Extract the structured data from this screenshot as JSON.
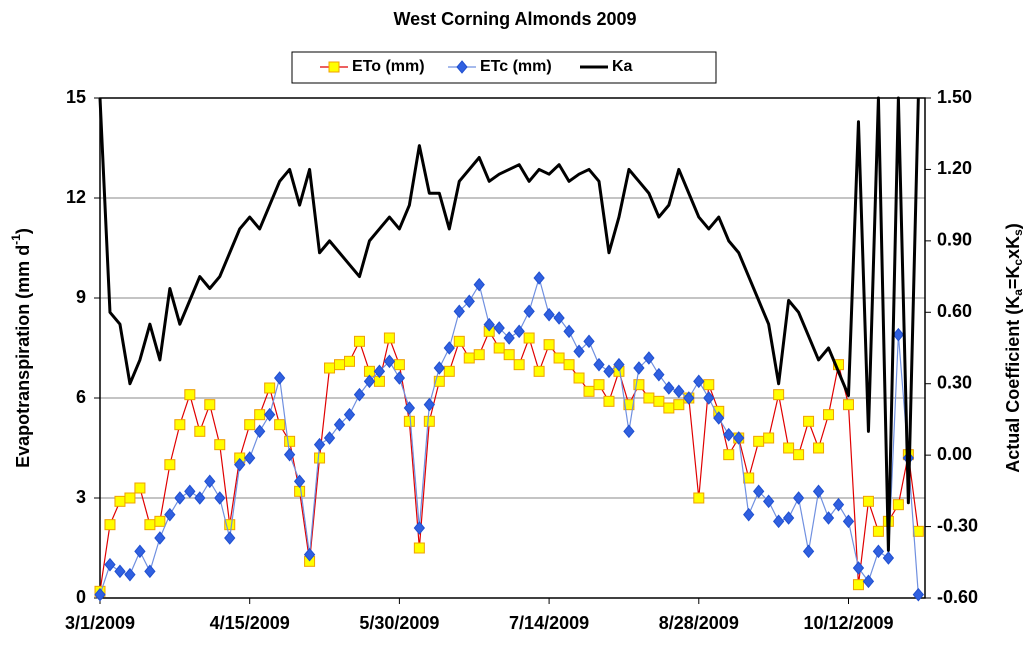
{
  "chart_data": {
    "type": "line",
    "title": "West Corning Almonds 2009",
    "ylabel": [
      "Evapotranspiration  (mm d",
      "-1",
      ")"
    ],
    "y2label": [
      "Actual  Coefficient (K",
      "a",
      "=K",
      "c",
      "xK",
      "s",
      ")"
    ],
    "x": [
      "3/1/2009",
      "3/4/2009",
      "3/7/2009",
      "3/10/2009",
      "3/13/2009",
      "3/16/2009",
      "3/19/2009",
      "3/22/2009",
      "3/25/2009",
      "3/28/2009",
      "3/31/2009",
      "4/3/2009",
      "4/6/2009",
      "4/9/2009",
      "4/12/2009",
      "4/15/2009",
      "4/18/2009",
      "4/21/2009",
      "4/24/2009",
      "4/27/2009",
      "4/30/2009",
      "5/3/2009",
      "5/6/2009",
      "5/9/2009",
      "5/12/2009",
      "5/15/2009",
      "5/18/2009",
      "5/21/2009",
      "5/24/2009",
      "5/27/2009",
      "5/30/2009",
      "6/2/2009",
      "6/5/2009",
      "6/8/2009",
      "6/11/2009",
      "6/14/2009",
      "6/17/2009",
      "6/20/2009",
      "6/23/2009",
      "6/26/2009",
      "6/29/2009",
      "7/2/2009",
      "7/5/2009",
      "7/8/2009",
      "7/11/2009",
      "7/14/2009",
      "7/17/2009",
      "7/20/2009",
      "7/23/2009",
      "7/26/2009",
      "7/29/2009",
      "8/1/2009",
      "8/4/2009",
      "8/7/2009",
      "8/10/2009",
      "8/13/2009",
      "8/16/2009",
      "8/19/2009",
      "8/22/2009",
      "8/25/2009",
      "8/28/2009",
      "8/31/2009",
      "9/3/2009",
      "9/6/2009",
      "9/9/2009",
      "9/12/2009",
      "9/15/2009",
      "9/18/2009",
      "9/21/2009",
      "9/24/2009",
      "9/27/2009",
      "9/30/2009",
      "10/3/2009",
      "10/6/2009",
      "10/9/2009",
      "10/12/2009",
      "10/15/2009",
      "10/18/2009",
      "10/21/2009",
      "10/24/2009",
      "10/27/2009",
      "10/30/2009",
      "11/2/2009"
    ],
    "xlim": [
      "3/1/2009",
      "11/4/2009"
    ],
    "xticks": [
      "3/1/2009",
      "4/15/2009",
      "5/30/2009",
      "7/14/2009",
      "8/28/2009",
      "10/12/2009"
    ],
    "ylim": [
      0,
      15
    ],
    "yticks": [
      0,
      3,
      6,
      9,
      12,
      15
    ],
    "y2lim": [
      -0.6,
      1.5
    ],
    "y2ticks": [
      {
        "value": -0.6,
        "label": "-0.60"
      },
      {
        "value": -0.3,
        "label": "-0.30"
      },
      {
        "value": 0,
        "label": "0.00"
      },
      {
        "value": 0.3,
        "label": "0.30"
      },
      {
        "value": 0.6,
        "label": "0.60"
      },
      {
        "value": 0.9,
        "label": "0.90"
      },
      {
        "value": 1.2,
        "label": "1.20"
      },
      {
        "value": 1.5,
        "label": "1.50"
      }
    ],
    "grid": true,
    "legend": "top",
    "series": [
      {
        "name": "ETo (mm)",
        "color": "#e00000",
        "marker": "square",
        "marker_fill": "#ffff00",
        "marker_edge": "#f0a000",
        "values": [
          0.2,
          2.2,
          2.9,
          3.0,
          3.3,
          2.2,
          2.3,
          4.0,
          5.2,
          6.1,
          5.0,
          5.8,
          4.6,
          2.2,
          4.2,
          5.2,
          5.5,
          6.3,
          5.2,
          4.7,
          3.2,
          1.1,
          4.2,
          6.9,
          7.0,
          7.1,
          7.7,
          6.8,
          6.5,
          7.8,
          7.0,
          5.3,
          1.5,
          5.3,
          6.5,
          6.8,
          7.7,
          7.2,
          7.3,
          8.0,
          7.5,
          7.3,
          7.0,
          7.8,
          6.8,
          7.6,
          7.2,
          7.0,
          6.6,
          6.2,
          6.4,
          5.9,
          6.8,
          5.8,
          6.4,
          6.0,
          5.9,
          5.7,
          5.8,
          6.0,
          3.0,
          6.4,
          5.6,
          4.3,
          4.8,
          3.6,
          4.7,
          4.8,
          6.1,
          4.5,
          4.3,
          5.3,
          4.5,
          5.5,
          7.0,
          5.8,
          0.4,
          2.9,
          2.0,
          2.3,
          2.8,
          4.3,
          2.0
        ]
      },
      {
        "name": "ETc (mm)",
        "color": "#7090e0",
        "marker": "diamond",
        "marker_fill": "#3060e0",
        "marker_edge": "#2050d0",
        "values": [
          0.1,
          1.0,
          0.8,
          0.7,
          1.4,
          0.8,
          1.8,
          2.5,
          3.0,
          3.2,
          3.0,
          3.5,
          3.0,
          1.8,
          4.0,
          4.2,
          5.0,
          5.5,
          6.6,
          4.3,
          3.5,
          1.3,
          4.6,
          4.8,
          5.2,
          5.5,
          6.1,
          6.5,
          6.8,
          7.1,
          6.6,
          5.7,
          2.1,
          5.8,
          6.9,
          7.5,
          8.6,
          8.9,
          9.4,
          8.2,
          8.1,
          7.8,
          8.0,
          8.6,
          9.6,
          8.5,
          8.4,
          8.0,
          7.4,
          7.7,
          7.0,
          6.8,
          7.0,
          5.0,
          6.9,
          7.2,
          6.7,
          6.3,
          6.2,
          6.0,
          6.5,
          6.0,
          5.4,
          4.9,
          4.8,
          2.5,
          3.2,
          2.9,
          2.3,
          2.4,
          3.0,
          1.4,
          3.2,
          2.4,
          2.8,
          2.3,
          0.9,
          0.5,
          1.4,
          1.2,
          7.9,
          4.2,
          0.1
        ]
      },
      {
        "name": "Ka",
        "color": "#000000",
        "marker": "none",
        "axis": "y2",
        "values": [
          1.5,
          0.6,
          0.55,
          0.3,
          0.4,
          0.55,
          0.4,
          0.7,
          0.55,
          0.65,
          0.75,
          0.7,
          0.75,
          0.85,
          0.95,
          1.0,
          0.95,
          1.05,
          1.15,
          1.2,
          1.05,
          1.2,
          0.85,
          0.9,
          0.85,
          0.8,
          0.75,
          0.9,
          0.95,
          1.0,
          0.95,
          1.05,
          1.3,
          1.1,
          1.1,
          0.95,
          1.15,
          1.2,
          1.25,
          1.15,
          1.18,
          1.2,
          1.22,
          1.15,
          1.2,
          1.18,
          1.22,
          1.15,
          1.18,
          1.2,
          1.15,
          0.85,
          1.0,
          1.2,
          1.15,
          1.1,
          1.0,
          1.05,
          1.2,
          1.1,
          1.0,
          0.95,
          1.0,
          0.9,
          0.85,
          0.75,
          0.65,
          0.55,
          0.3,
          0.65,
          0.6,
          0.5,
          0.4,
          0.45,
          0.35,
          0.25,
          1.4,
          0.1,
          1.5,
          -0.4,
          1.5,
          -0.2,
          1.5
        ]
      }
    ]
  }
}
